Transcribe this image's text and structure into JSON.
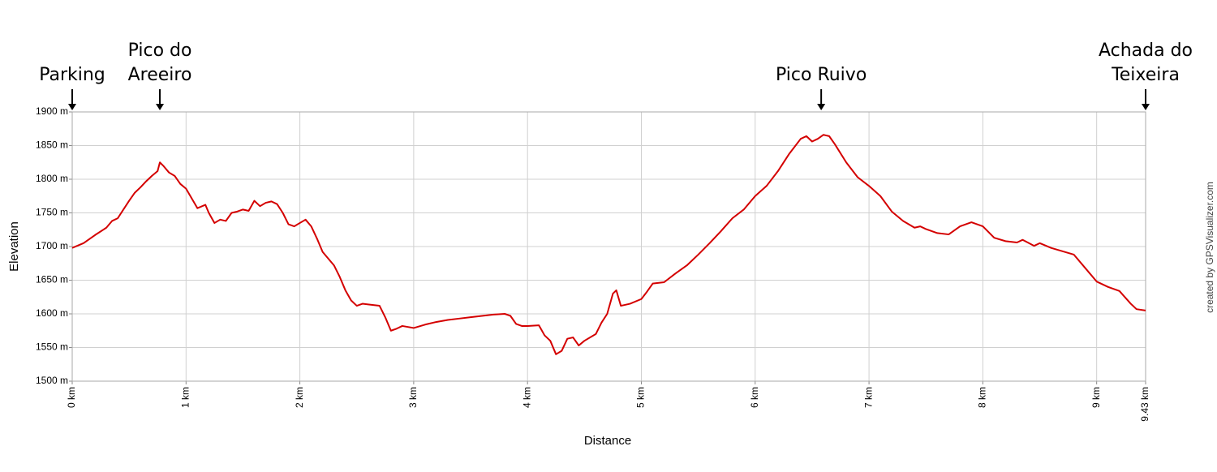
{
  "chart_data": {
    "type": "line",
    "x_label": "Distance",
    "y_label": "Elevation",
    "credit": "created by GPSVisualizer.com",
    "color": "#d40000",
    "grid": true,
    "xlim": [
      0,
      9.43
    ],
    "ylim": [
      1500,
      1900
    ],
    "xticks": [
      {
        "value": 0,
        "label": "0 km"
      },
      {
        "value": 1,
        "label": "1 km"
      },
      {
        "value": 2,
        "label": "2 km"
      },
      {
        "value": 3,
        "label": "3 km"
      },
      {
        "value": 4,
        "label": "4 km"
      },
      {
        "value": 5,
        "label": "5 km"
      },
      {
        "value": 6,
        "label": "6 km"
      },
      {
        "value": 7,
        "label": "7 km"
      },
      {
        "value": 8,
        "label": "8 km"
      },
      {
        "value": 9,
        "label": "9 km"
      },
      {
        "value": 9.43,
        "label": "9.43 km"
      }
    ],
    "yticks": [
      {
        "value": 1500,
        "label": "1500 m"
      },
      {
        "value": 1550,
        "label": "1550 m"
      },
      {
        "value": 1600,
        "label": "1600 m"
      },
      {
        "value": 1650,
        "label": "1650 m"
      },
      {
        "value": 1700,
        "label": "1700 m"
      },
      {
        "value": 1750,
        "label": "1750 m"
      },
      {
        "value": 1800,
        "label": "1800 m"
      },
      {
        "value": 1850,
        "label": "1850 m"
      },
      {
        "value": 1900,
        "label": "1900 m"
      }
    ],
    "annotations": [
      {
        "text": "Parking",
        "x": 0
      },
      {
        "text": "Pico do Areeiro",
        "x": 0.77
      },
      {
        "text": "Pico Ruivo",
        "x": 6.58
      },
      {
        "text": "Achada do Teixeira",
        "x": 9.43
      }
    ],
    "x": [
      0,
      0.1,
      0.2,
      0.3,
      0.35,
      0.4,
      0.45,
      0.5,
      0.55,
      0.6,
      0.65,
      0.7,
      0.75,
      0.77,
      0.8,
      0.85,
      0.9,
      0.95,
      1.0,
      1.1,
      1.17,
      1.2,
      1.25,
      1.3,
      1.35,
      1.4,
      1.45,
      1.5,
      1.55,
      1.6,
      1.65,
      1.7,
      1.75,
      1.8,
      1.85,
      1.9,
      1.95,
      2.0,
      2.05,
      2.1,
      2.15,
      2.2,
      2.3,
      2.35,
      2.4,
      2.45,
      2.5,
      2.55,
      2.6,
      2.7,
      2.75,
      2.8,
      2.85,
      2.9,
      3.0,
      3.1,
      3.2,
      3.3,
      3.4,
      3.5,
      3.6,
      3.7,
      3.8,
      3.85,
      3.9,
      3.95,
      4.0,
      4.1,
      4.15,
      4.2,
      4.25,
      4.3,
      4.35,
      4.4,
      4.45,
      4.5,
      4.6,
      4.65,
      4.7,
      4.75,
      4.78,
      4.82,
      4.9,
      5.0,
      5.05,
      5.1,
      5.2,
      5.3,
      5.4,
      5.5,
      5.6,
      5.7,
      5.8,
      5.9,
      6.0,
      6.1,
      6.2,
      6.3,
      6.4,
      6.45,
      6.5,
      6.55,
      6.6,
      6.65,
      6.7,
      6.8,
      6.9,
      7.0,
      7.1,
      7.2,
      7.3,
      7.4,
      7.45,
      7.5,
      7.6,
      7.7,
      7.8,
      7.9,
      8.0,
      8.1,
      8.2,
      8.3,
      8.35,
      8.45,
      8.5,
      8.6,
      8.7,
      8.8,
      8.9,
      9.0,
      9.1,
      9.2,
      9.3,
      9.35,
      9.43
    ],
    "values": [
      1698,
      1705,
      1717,
      1728,
      1738,
      1742,
      1755,
      1768,
      1780,
      1788,
      1797,
      1805,
      1812,
      1825,
      1820,
      1810,
      1805,
      1793,
      1786,
      1757,
      1762,
      1750,
      1735,
      1740,
      1738,
      1750,
      1752,
      1755,
      1753,
      1768,
      1760,
      1765,
      1767,
      1763,
      1750,
      1733,
      1730,
      1735,
      1740,
      1730,
      1712,
      1692,
      1672,
      1655,
      1635,
      1620,
      1612,
      1615,
      1614,
      1612,
      1595,
      1575,
      1578,
      1582,
      1579,
      1584,
      1588,
      1591,
      1593,
      1595,
      1597,
      1599,
      1600,
      1597,
      1585,
      1582,
      1582,
      1583,
      1568,
      1560,
      1540,
      1545,
      1563,
      1565,
      1553,
      1560,
      1570,
      1587,
      1600,
      1630,
      1635,
      1612,
      1615,
      1622,
      1633,
      1645,
      1647,
      1660,
      1672,
      1688,
      1705,
      1723,
      1742,
      1755,
      1775,
      1790,
      1812,
      1838,
      1860,
      1864,
      1856,
      1860,
      1866,
      1864,
      1852,
      1825,
      1803,
      1790,
      1775,
      1752,
      1738,
      1728,
      1730,
      1726,
      1720,
      1718,
      1730,
      1736,
      1730,
      1713,
      1708,
      1706,
      1710,
      1701,
      1705,
      1698,
      1693,
      1688,
      1668,
      1648,
      1640,
      1634,
      1615,
      1607,
      1605
    ]
  }
}
